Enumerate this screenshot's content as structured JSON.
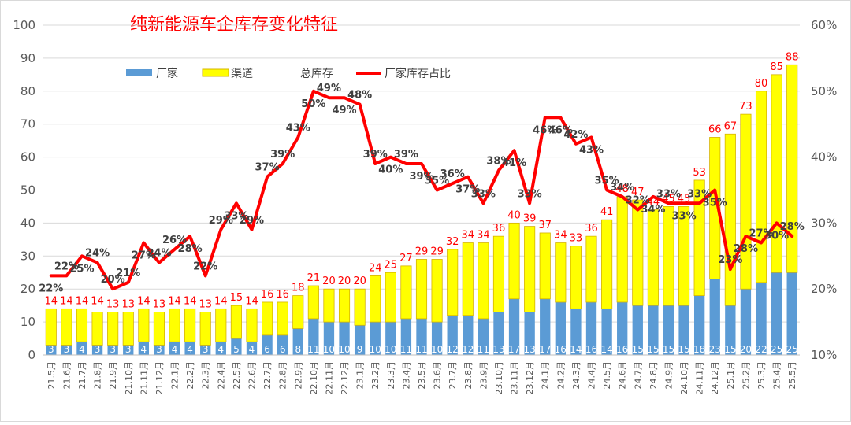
{
  "chart_data": {
    "type": "bar",
    "title": "纯新能源车企库存变化特征",
    "legend": {
      "position": "top",
      "factory": "厂家",
      "channel": "渠道",
      "total": "总库存",
      "ratio": "厂家库存占比"
    },
    "colors": {
      "factory": "#5b9bd5",
      "channel": "#ffff00",
      "channel_border": "#d6b400",
      "ratio_line": "#ff0000",
      "total_label": "#ff0000"
    },
    "y_left": {
      "min": 0,
      "max": 100,
      "ticks": [
        "0",
        "10",
        "20",
        "30",
        "40",
        "50",
        "60",
        "70",
        "80",
        "90",
        "100"
      ]
    },
    "y_right": {
      "min": 10,
      "max": 60,
      "ticks": [
        "10%",
        "20%",
        "30%",
        "40%",
        "50%",
        "60%"
      ]
    },
    "categories": [
      "21.5月",
      "21.6月",
      "21.7月",
      "21.8月",
      "21.9月",
      "21.10月",
      "21.11月",
      "21.12月",
      "22.1月",
      "22.2月",
      "22.3月",
      "22.4月",
      "22.5月",
      "22.6月",
      "22.7月",
      "22.8月",
      "22.9月",
      "22.10月",
      "22.11月",
      "22.12月",
      "23.1月",
      "23.2月",
      "23.3月",
      "23.4月",
      "23.5月",
      "23.6月",
      "23.7月",
      "23.8月",
      "23.9月",
      "23.10月",
      "23.11月",
      "23.12月",
      "24.1月",
      "24.2月",
      "24.3月",
      "24.4月",
      "24.5月",
      "24.6月",
      "24.7月",
      "24.8月",
      "24.9月",
      "24.10月",
      "24.11月",
      "24.12月",
      "25.1月",
      "25.2月",
      "25.3月",
      "25.4月",
      "25.5月"
    ],
    "series": [
      {
        "name": "厂家",
        "values": [
          3,
          3,
          4,
          3,
          3,
          3,
          4,
          3,
          4,
          4,
          3,
          4,
          5,
          4,
          6,
          6,
          8,
          11,
          10,
          10,
          9,
          10,
          10,
          11,
          11,
          10,
          12,
          12,
          11,
          13,
          17,
          13,
          17,
          16,
          14,
          16,
          14,
          16,
          15,
          15,
          15,
          15,
          18,
          23,
          15,
          20,
          22,
          25,
          25
        ]
      },
      {
        "name": "渠道",
        "values": [
          11,
          11,
          10,
          10,
          10,
          10,
          10,
          10,
          10,
          10,
          10,
          10,
          10,
          10,
          10,
          10,
          10,
          10,
          10,
          10,
          11,
          14,
          15,
          16,
          18,
          19,
          20,
          22,
          23,
          23,
          23,
          26,
          20,
          18,
          19,
          20,
          27,
          32,
          32,
          29,
          30,
          30,
          35,
          43,
          52,
          53,
          58,
          60,
          63
        ]
      },
      {
        "name": "总库存",
        "values": [
          14,
          14,
          14,
          14,
          13,
          13,
          14,
          13,
          14,
          14,
          13,
          14,
          15,
          14,
          16,
          16,
          18,
          21,
          20,
          20,
          20,
          24,
          25,
          27,
          29,
          29,
          32,
          34,
          34,
          36,
          40,
          39,
          37,
          34,
          33,
          36,
          41,
          48,
          47,
          44,
          45,
          45,
          53,
          66,
          67,
          73,
          80,
          85,
          88
        ]
      },
      {
        "name": "厂家库存占比",
        "values": [
          22,
          22,
          25,
          24,
          20,
          21,
          27,
          24,
          26,
          28,
          22,
          29,
          33,
          29,
          37,
          39,
          43,
          50,
          49,
          49,
          48,
          39,
          40,
          39,
          39,
          35,
          36,
          37,
          33,
          38,
          41,
          33,
          46,
          46,
          42,
          43,
          35,
          34,
          32,
          34,
          33,
          33,
          33,
          35,
          23,
          28,
          27,
          30,
          28
        ]
      }
    ],
    "ratio_labels": [
      "22%",
      "22%",
      "25%",
      "24%",
      "20%",
      "21%",
      "27%",
      "24%",
      "26%",
      "28%",
      "22%",
      "29%",
      "33%",
      "29%",
      "37%",
      "39%",
      "43%",
      "50%",
      "49%",
      "49%",
      "48%",
      "39%",
      "40%",
      "39%",
      "39%",
      "35%",
      "36%",
      "37%",
      "33%",
      "38%",
      "41%",
      "33%",
      "46%",
      "46%",
      "42%",
      "43%",
      "35%",
      "34%",
      "32%",
      "34%",
      "33%",
      "33%",
      "33%",
      "35%",
      "23%",
      "28%",
      "27%",
      "30%",
      "28%"
    ]
  }
}
